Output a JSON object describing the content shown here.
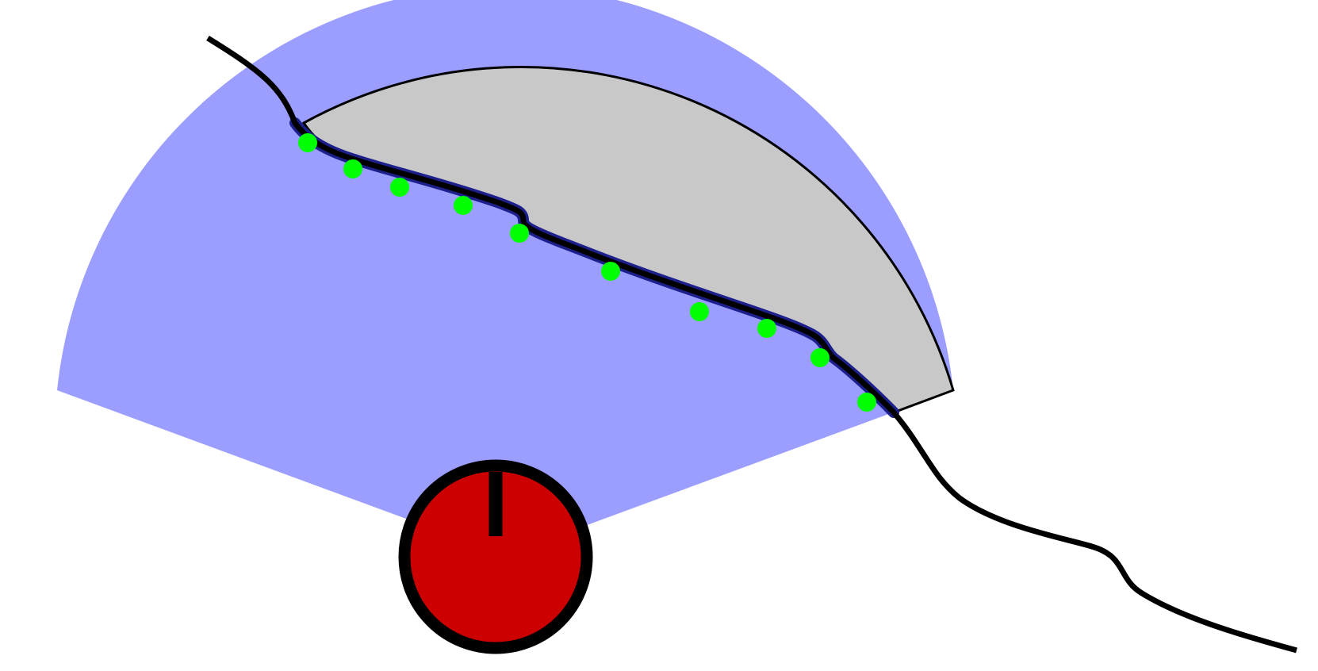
{
  "diagram": {
    "colors": {
      "background": "#ffffff",
      "field_of_view": "#9b9dff",
      "occluded_region": "#c8c8c8",
      "occluded_outline": "#000000",
      "wall": "#000000",
      "visible_wall_highlight": "#1d1f8c",
      "sample_points": "#00ff00",
      "robot_body": "#cc0000",
      "robot_outline": "#000000",
      "heading_indicator": "#000000"
    },
    "sample_point_count": 10
  }
}
